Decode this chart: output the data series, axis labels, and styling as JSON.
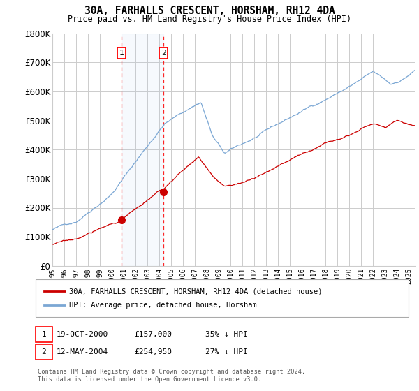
{
  "title": "30A, FARHALLS CRESCENT, HORSHAM, RH12 4DA",
  "subtitle": "Price paid vs. HM Land Registry's House Price Index (HPI)",
  "ylim": [
    0,
    800000
  ],
  "yticks": [
    0,
    100000,
    200000,
    300000,
    400000,
    500000,
    600000,
    700000,
    800000
  ],
  "ytick_labels": [
    "£0",
    "£100K",
    "£200K",
    "£300K",
    "£400K",
    "£500K",
    "£600K",
    "£700K",
    "£800K"
  ],
  "background_color": "#ffffff",
  "grid_color": "#cccccc",
  "hpi_color": "#7ba7d4",
  "price_color": "#cc0000",
  "purchase1_date_num": 2000.8,
  "purchase1_price": 157000,
  "purchase1_label": "19-OCT-2000",
  "purchase1_price_str": "£157,000",
  "purchase1_hpi_str": "35% ↓ HPI",
  "purchase2_date_num": 2004.36,
  "purchase2_price": 254950,
  "purchase2_label": "12-MAY-2004",
  "purchase2_price_str": "£254,950",
  "purchase2_hpi_str": "27% ↓ HPI",
  "legend_line1": "30A, FARHALLS CRESCENT, HORSHAM, RH12 4DA (detached house)",
  "legend_line2": "HPI: Average price, detached house, Horsham",
  "footer": "Contains HM Land Registry data © Crown copyright and database right 2024.\nThis data is licensed under the Open Government Licence v3.0.",
  "xmin": 1995,
  "xmax": 2025.5
}
